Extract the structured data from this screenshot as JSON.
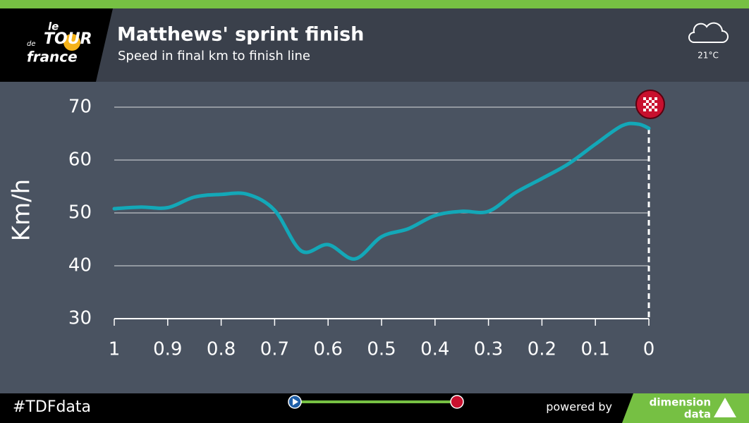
{
  "header": {
    "logo": [
      "le",
      "TOUR",
      "de",
      "france"
    ],
    "title": "Matthews' sprint finish",
    "subtitle": "Speed in final km to finish line",
    "temperature": "21°C"
  },
  "chart_data": {
    "type": "line",
    "y_label": "Km/h",
    "x": [
      1,
      0.95,
      0.9,
      0.85,
      0.8,
      0.75,
      0.7,
      0.65,
      0.6,
      0.55,
      0.5,
      0.45,
      0.4,
      0.35,
      0.3,
      0.25,
      0.2,
      0.15,
      0.1,
      0.05,
      0.02,
      0
    ],
    "values": [
      50.8,
      51.1,
      51.0,
      53.0,
      53.5,
      53.5,
      50.5,
      42.8,
      44.0,
      41.3,
      45.5,
      47.0,
      49.5,
      50.3,
      50.3,
      53.8,
      56.5,
      59.3,
      63.0,
      66.5,
      66.8,
      66.0
    ],
    "color": "#13a8b8",
    "xlim": [
      1,
      0
    ],
    "ylim": [
      30,
      70
    ],
    "xticks": [
      1,
      0.9,
      0.8,
      0.7,
      0.6,
      0.5,
      0.4,
      0.3,
      0.2,
      0.1,
      0
    ],
    "yticks": [
      30,
      40,
      50,
      60,
      70
    ],
    "grid": true
  },
  "footer": {
    "hashtag": "#TDFdata",
    "powered_by": "powered by",
    "brand": [
      "dimension",
      "data"
    ]
  }
}
